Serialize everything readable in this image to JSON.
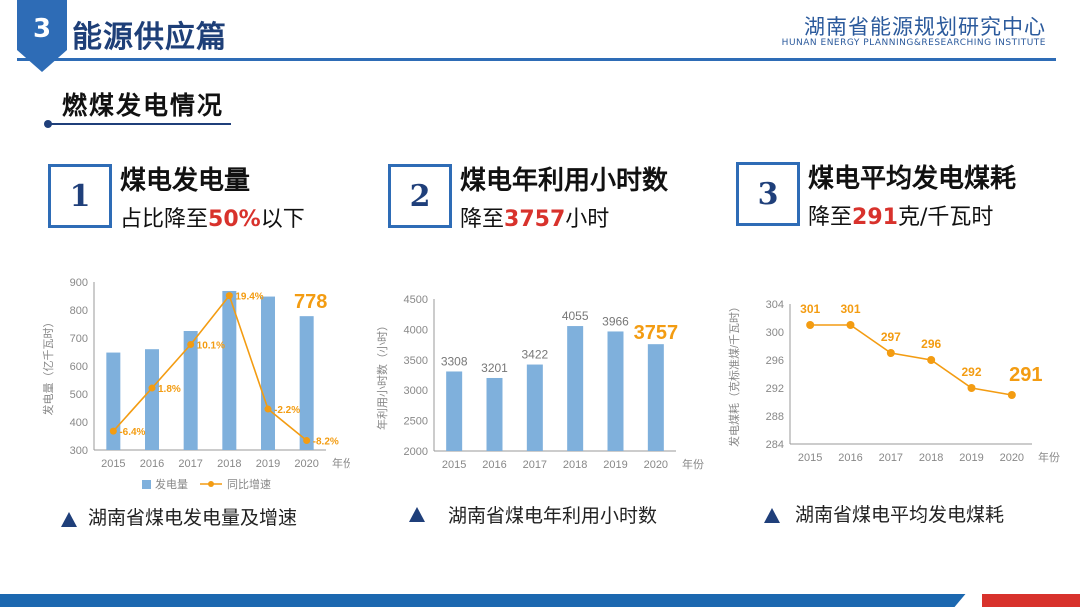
{
  "header": {
    "section_number": "3",
    "section_title": "能源供应篇",
    "org_name_cn": "湖南省能源规划研究中心",
    "org_name_en": "HUNAN ENERGY PLANNING&RESEARCHING INSTITUTE",
    "colors": {
      "primary": "#2e6cb6",
      "dark": "#1f3f7a",
      "highlight": "#d8322c",
      "orange": "#f39c12",
      "bar": "#7fb0dc"
    }
  },
  "section": {
    "title": "燃煤发电情况"
  },
  "kpis": [
    {
      "num": "1",
      "title": "煤电发电量",
      "desc_prefix": "占比降至",
      "desc_value": "50%",
      "desc_suffix": "以下"
    },
    {
      "num": "2",
      "title": "煤电年利用小时数",
      "desc_prefix": "降至",
      "desc_value": "3757",
      "desc_suffix": "小时"
    },
    {
      "num": "3",
      "title": "煤电平均发电煤耗",
      "desc_prefix": "降至",
      "desc_value": "291",
      "desc_suffix": "克/千瓦时"
    }
  ],
  "captions": [
    "湖南省煤电发电量及增速",
    "湖南省煤电年利用小时数",
    "湖南省煤电平均发电煤耗"
  ],
  "chart_data": [
    {
      "type": "bar",
      "categories": [
        "2015",
        "2016",
        "2017",
        "2018",
        "2019",
        "2020"
      ],
      "ylabel": "发电量（亿千瓦时）",
      "ylim": [
        300,
        900
      ],
      "yticks": [
        "300",
        "400",
        "500",
        "600",
        "700",
        "800",
        "900"
      ],
      "series": [
        {
          "name": "发电量",
          "kind": "bar",
          "values": [
            648,
            660,
            725,
            868,
            848,
            778
          ]
        },
        {
          "name": "同比增速",
          "kind": "line",
          "values": [
            -6.4,
            1.8,
            10.1,
            19.4,
            -2.2,
            -8.2
          ]
        }
      ],
      "labels": [
        "-6.4%",
        "1.8%",
        "10.1%",
        "19.4%",
        "-2.2%",
        "-8.2%"
      ],
      "highlight_label": "778",
      "xunit": "年份"
    },
    {
      "type": "bar",
      "categories": [
        "2015",
        "2016",
        "2017",
        "2018",
        "2019",
        "2020"
      ],
      "ylabel": "年利用小时数（小时）",
      "ylim": [
        2000,
        4500
      ],
      "yticks": [
        "2000",
        "2500",
        "3000",
        "3500",
        "4000",
        "4500"
      ],
      "values": [
        3308,
        3201,
        3422,
        4055,
        3966,
        3757
      ],
      "labels": [
        "3308",
        "3201",
        "3422",
        "4055",
        "3966",
        "3757"
      ],
      "xunit": "年份"
    },
    {
      "type": "line",
      "categories": [
        "2015",
        "2016",
        "2017",
        "2018",
        "2019",
        "2020"
      ],
      "ylabel": "发电煤耗（克标准煤/千瓦时）",
      "ylim": [
        284,
        304
      ],
      "yticks": [
        "284",
        "288",
        "292",
        "296",
        "300",
        "304"
      ],
      "values": [
        301,
        301,
        297,
        296,
        292,
        291
      ],
      "labels": [
        "301",
        "301",
        "297",
        "296",
        "292",
        "291"
      ],
      "xunit": "年份"
    }
  ]
}
